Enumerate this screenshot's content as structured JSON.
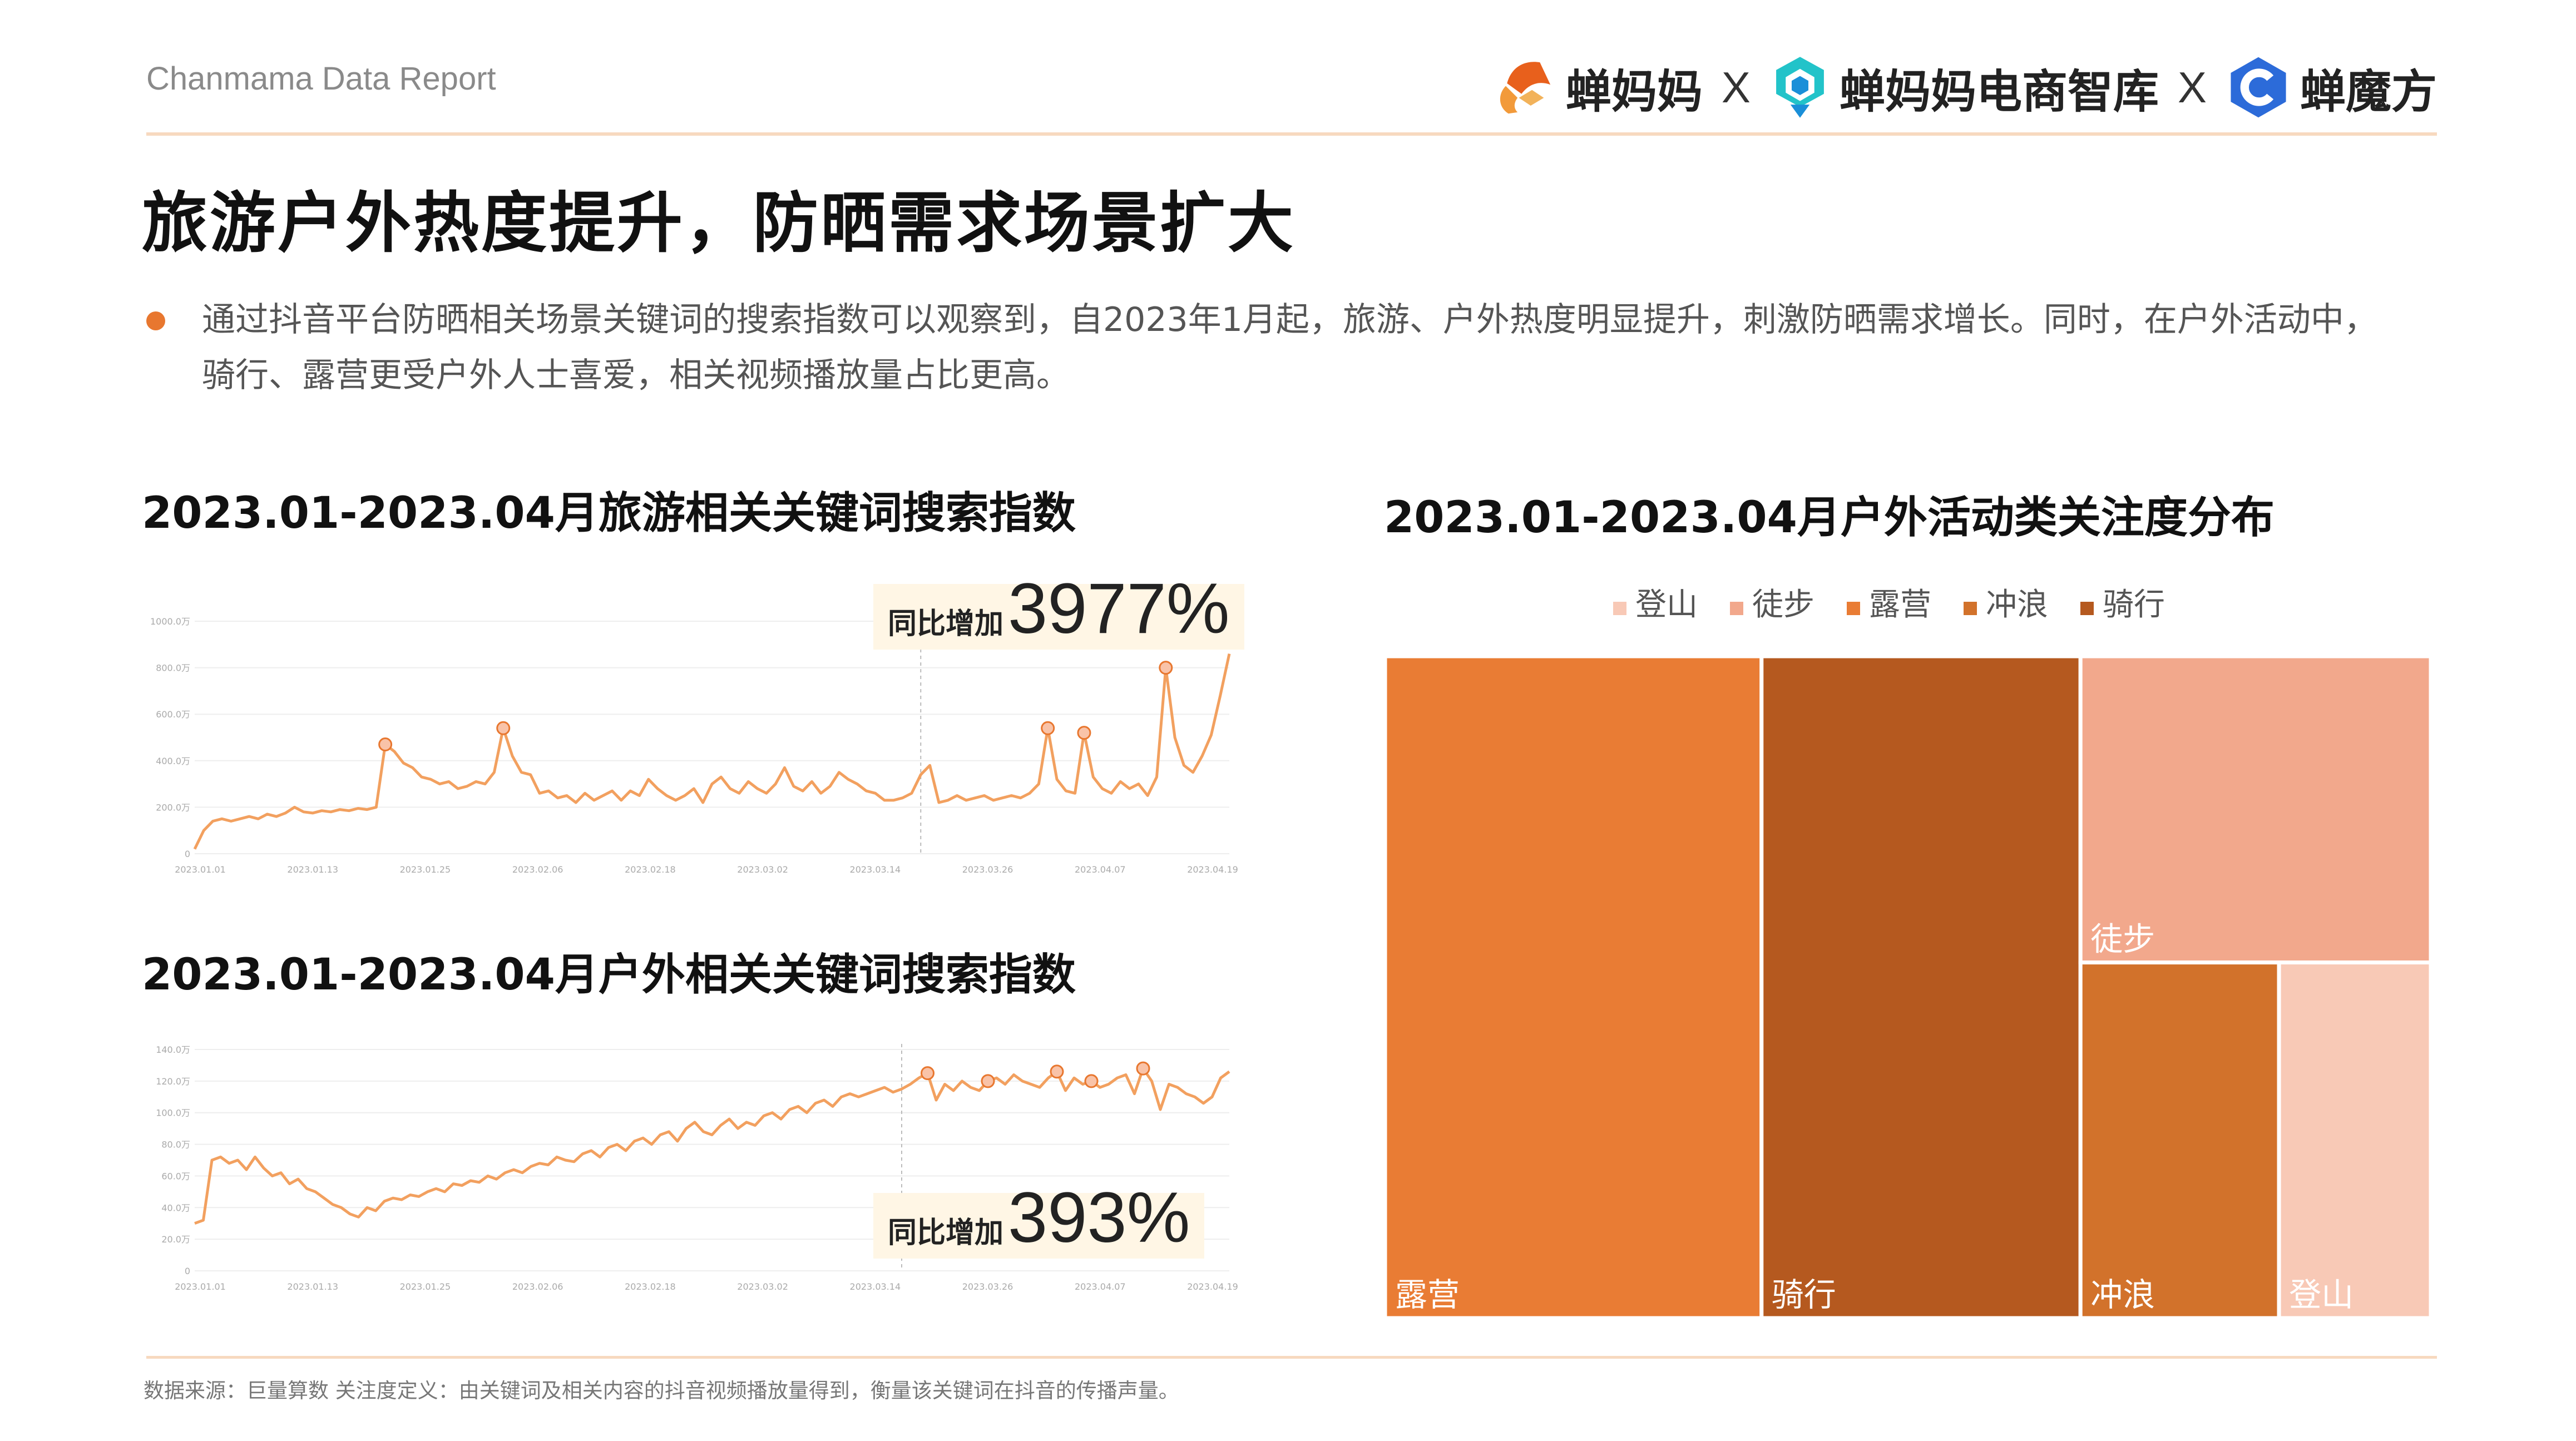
{
  "header": {
    "brand": "Chanmama Data Report",
    "logos": [
      {
        "label": "蝉妈妈",
        "icon": "chanmama-logo-icon",
        "color": "#e8601c"
      },
      {
        "sep": "X"
      },
      {
        "label": "蝉妈妈电商智库",
        "icon": "chanmama-think-tank-logo-icon",
        "color": "#19b8c8"
      },
      {
        "sep": "X"
      },
      {
        "label": "蝉魔方",
        "icon": "chanmofang-logo-icon",
        "color": "#2c6bd9"
      }
    ]
  },
  "title": "旅游户外热度提升，防晒需求场景扩大",
  "bullet": "通过抖音平台防晒相关场景关键词的搜索指数可以观察到，自2023年1月起，旅游、户外热度明显提升，刺激防晒需求增长。同时，在户外活动中，骑行、露营更受户外人士喜爱，相关视频播放量占比更高。",
  "footer_note": "数据来源：巨量算数 关注度定义：由关键词及相关内容的抖音视频播放量得到，衡量该关键词在抖音的传播声量。",
  "colors": {
    "accent": "#e8772f",
    "line": "#f2a05f",
    "badge_bg": "#fff6e5"
  },
  "chart_data": [
    {
      "type": "line",
      "title": "2023.01-2023.04月旅游相关关键词搜索指数",
      "badge_label": "同比增加",
      "badge_value": "3977%",
      "x_ticks": [
        "2023.01.01",
        "2023.01.13",
        "2023.01.25",
        "2023.02.06",
        "2023.02.18",
        "2023.03.02",
        "2023.03.14",
        "2023.03.26",
        "2023.04.07",
        "2023.04.19"
      ],
      "y_ticks": [
        "0",
        "200.0万",
        "400.0万",
        "600.0万",
        "800.0万",
        "1000.0万"
      ],
      "ylim": [
        0,
        1000
      ],
      "y_unit": "万",
      "grid": true,
      "highlight_points": [
        21,
        34,
        94,
        98,
        107
      ],
      "marker_at": 80,
      "values": [
        20,
        100,
        140,
        150,
        140,
        150,
        160,
        150,
        170,
        160,
        175,
        200,
        180,
        175,
        185,
        180,
        190,
        185,
        195,
        190,
        200,
        470,
        440,
        390,
        370,
        330,
        320,
        300,
        310,
        280,
        290,
        310,
        300,
        350,
        540,
        420,
        350,
        340,
        260,
        270,
        240,
        250,
        220,
        260,
        230,
        250,
        270,
        230,
        270,
        250,
        320,
        280,
        250,
        230,
        250,
        280,
        220,
        300,
        330,
        280,
        260,
        310,
        280,
        260,
        300,
        370,
        290,
        270,
        310,
        260,
        290,
        350,
        320,
        300,
        270,
        260,
        230,
        230,
        240,
        260,
        340,
        380,
        220,
        230,
        250,
        230,
        240,
        250,
        230,
        240,
        250,
        240,
        260,
        300,
        540,
        320,
        270,
        260,
        520,
        330,
        280,
        260,
        310,
        280,
        300,
        250,
        330,
        800,
        500,
        380,
        350,
        420,
        510,
        680,
        860
      ]
    },
    {
      "type": "line",
      "title": "2023.01-2023.04月户外相关关键词搜索指数",
      "badge_label": "同比增加",
      "badge_value": "393%",
      "x_ticks": [
        "2023.01.01",
        "2023.01.13",
        "2023.01.25",
        "2023.02.06",
        "2023.02.18",
        "2023.03.02",
        "2023.03.14",
        "2023.03.26",
        "2023.04.07",
        "2023.04.19"
      ],
      "y_ticks": [
        "0",
        "20.0万",
        "40.0万",
        "60.0万",
        "80.0万",
        "100.0万",
        "120.0万",
        "140.0万"
      ],
      "ylim": [
        0,
        140
      ],
      "y_unit": "万",
      "grid": true,
      "highlight_points": [
        85,
        92,
        100,
        104,
        110
      ],
      "marker_at": 82,
      "values": [
        30,
        32,
        70,
        72,
        68,
        70,
        64,
        72,
        65,
        60,
        62,
        55,
        58,
        52,
        50,
        46,
        42,
        40,
        36,
        34,
        40,
        38,
        44,
        46,
        45,
        48,
        47,
        50,
        52,
        50,
        55,
        54,
        57,
        56,
        60,
        58,
        62,
        64,
        62,
        66,
        68,
        67,
        72,
        70,
        69,
        74,
        76,
        72,
        78,
        80,
        76,
        82,
        84,
        80,
        86,
        88,
        82,
        90,
        94,
        88,
        86,
        92,
        96,
        90,
        94,
        92,
        98,
        100,
        96,
        102,
        104,
        100,
        106,
        108,
        104,
        110,
        112,
        110,
        112,
        114,
        116,
        113,
        115,
        118,
        122,
        125,
        108,
        118,
        114,
        120,
        116,
        114,
        120,
        122,
        118,
        124,
        120,
        118,
        116,
        122,
        126,
        114,
        122,
        118,
        120,
        116,
        118,
        122,
        124,
        112,
        128,
        120,
        102,
        118,
        116,
        112,
        110,
        106,
        110,
        122,
        126
      ]
    },
    {
      "type": "treemap",
      "title": "2023.01-2023.04月户外活动类关注度分布",
      "legend": [
        "登山",
        "徒步",
        "露营",
        "冲浪",
        "骑行"
      ],
      "legend_position": "top",
      "categories": [
        "露营",
        "骑行",
        "徒步",
        "冲浪",
        "登山"
      ],
      "values": [
        36.0,
        30.5,
        15.5,
        10.2,
        7.8
      ],
      "colors": [
        "#e97c34",
        "#b5591f",
        "#f2a88c",
        "#d2722b",
        "#f8c9b6"
      ]
    }
  ]
}
